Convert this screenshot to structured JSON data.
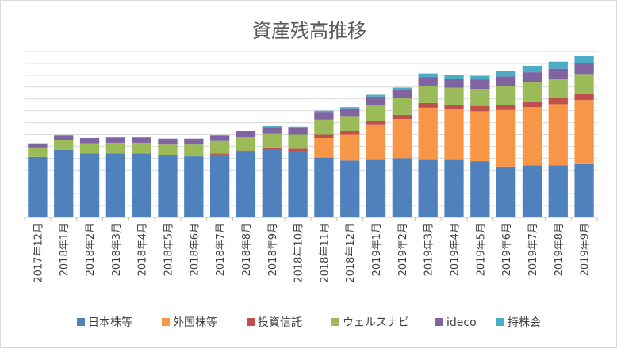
{
  "chart_data": {
    "type": "stacked-bar",
    "title": "資産残高推移",
    "xlabel": "",
    "ylabel": "",
    "ylim": [
      0,
      28
    ],
    "grid": true,
    "legend_position": "bottom",
    "categories": [
      "2017年12月",
      "2018年1月",
      "2018年2月",
      "2018年3月",
      "2018年4月",
      "2018年5月",
      "2018年6月",
      "2018年7月",
      "2018年8月",
      "2018年9月",
      "2018年10月",
      "2018年11月",
      "2018年12月",
      "2019年1月",
      "2019年2月",
      "2019年3月",
      "2019年4月",
      "2019年5月",
      "2019年6月",
      "2019年7月",
      "2019年8月",
      "2019年9月"
    ],
    "series": [
      {
        "name": "日本株等",
        "color": "#4f81bd",
        "values": [
          10.2,
          11.4,
          10.8,
          10.8,
          10.8,
          10.5,
          10.3,
          10.6,
          11.0,
          11.4,
          11.2,
          10.1,
          9.6,
          9.7,
          10.0,
          9.7,
          9.7,
          9.5,
          8.6,
          8.8,
          8.8,
          9.0
        ]
      },
      {
        "name": "外国株等",
        "color": "#f79646",
        "values": [
          0,
          0,
          0,
          0,
          0,
          0,
          0,
          0,
          0,
          0,
          0,
          3.3,
          4.4,
          6.0,
          6.6,
          8.8,
          8.5,
          8.4,
          9.5,
          9.8,
          10.3,
          10.8
        ]
      },
      {
        "name": "投資信託",
        "color": "#c0504d",
        "values": [
          0,
          0,
          0,
          0,
          0,
          0,
          0,
          0.2,
          0.3,
          0.4,
          0.4,
          0.6,
          0.6,
          0.6,
          0.7,
          0.8,
          0.8,
          0.9,
          0.9,
          1.0,
          1.0,
          1.1
        ]
      },
      {
        "name": "ウェルスナビ",
        "color": "#9bbb59",
        "values": [
          1.6,
          1.7,
          1.7,
          1.8,
          1.8,
          1.8,
          2.0,
          2.1,
          2.2,
          2.3,
          2.4,
          2.5,
          2.5,
          2.7,
          2.8,
          2.9,
          2.9,
          2.9,
          3.1,
          3.2,
          3.2,
          3.3
        ]
      },
      {
        "name": "ideco",
        "color": "#8064a2",
        "values": [
          0.7,
          0.8,
          0.9,
          0.9,
          0.9,
          1.0,
          1.0,
          1.0,
          1.1,
          1.1,
          1.1,
          1.3,
          1.3,
          1.4,
          1.4,
          1.5,
          1.5,
          1.6,
          1.7,
          1.7,
          1.8,
          1.8
        ]
      },
      {
        "name": "持株会",
        "color": "#4bacc6",
        "values": [
          0,
          0,
          0,
          0,
          0,
          0,
          0,
          0,
          0,
          0.2,
          0.2,
          0.2,
          0.2,
          0.3,
          0.4,
          0.6,
          0.6,
          0.6,
          0.9,
          1.1,
          1.2,
          1.3
        ]
      }
    ]
  }
}
